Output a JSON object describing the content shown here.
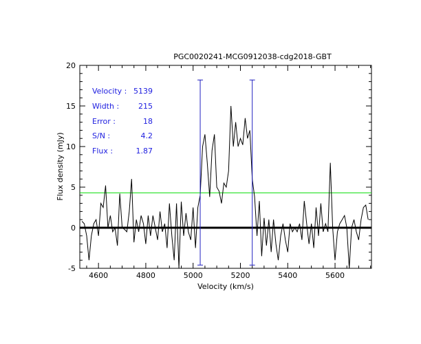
{
  "chart_data": {
    "type": "line",
    "title": "PGC0020241-MCG0912038-cdg2018-GBT",
    "xlabel": "Velocity (km/s)",
    "ylabel": "Flux density (mJy)",
    "xlim": [
      4521,
      5754
    ],
    "ylim": [
      -5,
      20
    ],
    "xticks": [
      4600,
      4800,
      5000,
      5200,
      5400,
      5600
    ],
    "yticks": [
      -5,
      0,
      5,
      10,
      15,
      20
    ],
    "grid": false,
    "annotations": [
      {
        "label": "Velocity :",
        "value": "5139"
      },
      {
        "label": "Width :",
        "value": "215"
      },
      {
        "label": "Error :",
        "value": "18"
      },
      {
        "label": "S/N :",
        "value": "4.2"
      },
      {
        "label": "Flux :",
        "value": "1.87"
      }
    ],
    "noise_level": 4.3,
    "baseline": 0,
    "markers": [
      {
        "x": 5030,
        "ymin": -4.6,
        "ymax": 18.2
      },
      {
        "x": 5250,
        "ymin": -4.6,
        "ymax": 18.2
      }
    ],
    "series": [
      {
        "name": "spectrum",
        "x_start": 4530,
        "x_step": 10,
        "values": [
          0.8,
          0.5,
          -1,
          -4,
          -1,
          0.5,
          1,
          -1,
          3,
          2.5,
          5.2,
          0,
          1.5,
          -0.5,
          0,
          -2.2,
          4.2,
          0,
          -0.2,
          -0.5,
          2,
          6,
          -1.8,
          1,
          -0.5,
          1.5,
          0.5,
          -2,
          1.5,
          -1,
          1.5,
          0,
          -1.5,
          2,
          -0.5,
          0.5,
          -2.5,
          3,
          -1,
          -4,
          3,
          -5,
          3.2,
          -1,
          1.8,
          -0.5,
          -1.5,
          2.5,
          -2.5,
          2.5,
          4,
          10,
          11.5,
          8,
          3.8,
          9.5,
          11.5,
          5,
          4.5,
          3,
          5.5,
          5,
          7,
          15,
          10,
          13,
          10,
          11,
          10.2,
          13.5,
          11,
          12,
          6,
          3.8,
          -1,
          3.3,
          -3.5,
          1.2,
          -2.2,
          1,
          -3,
          1,
          -2,
          -4,
          -1,
          0.5,
          -1.5,
          -3,
          0.5,
          -0.5,
          0,
          -0.5,
          0.5,
          -1.5,
          3.3,
          0.5,
          -2,
          0.5,
          -2.5,
          2.5,
          -1,
          3,
          -0.5,
          0.5,
          -0.5,
          8,
          0,
          -4,
          -0.5,
          0.5,
          1,
          1.5,
          0,
          -5,
          0,
          1,
          -0.5,
          -1.5,
          1,
          2.5,
          2.8,
          1
        ]
      }
    ],
    "colors": {
      "spectrum": "#000000",
      "noise": "#00dd00",
      "markers": "#2020c0",
      "text": "#2020e0"
    }
  }
}
